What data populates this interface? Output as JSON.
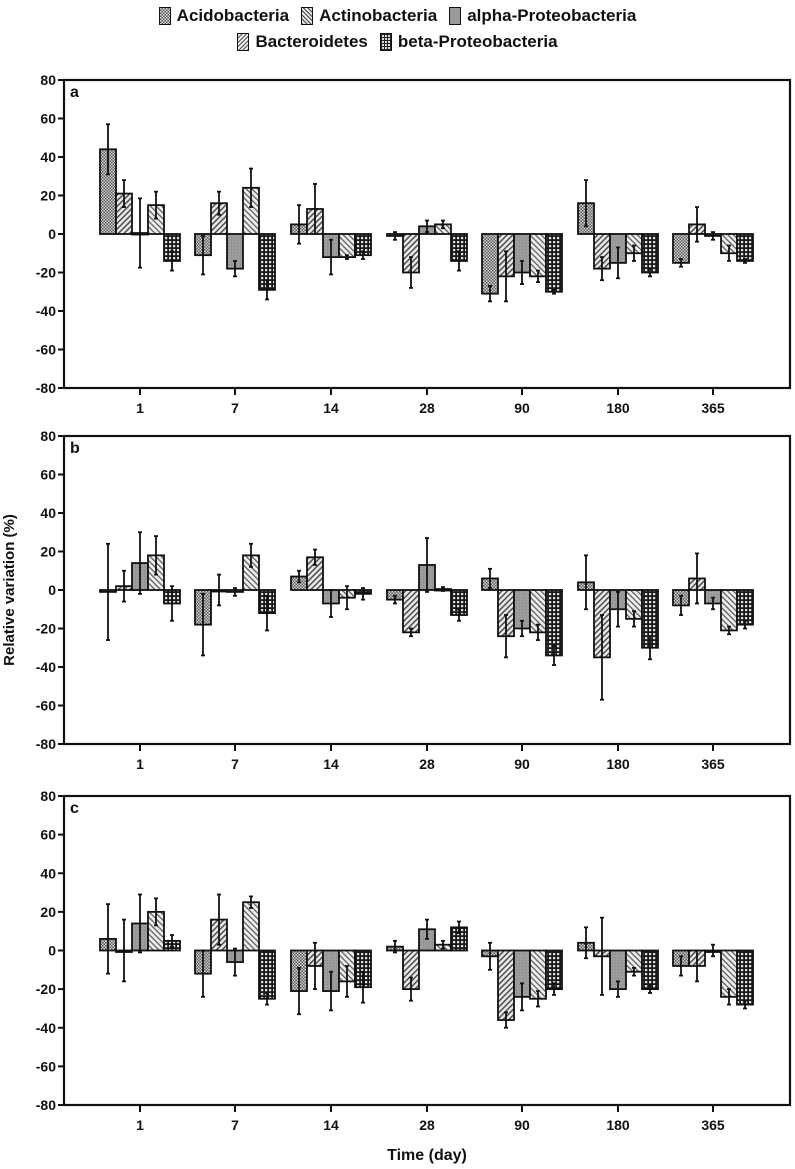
{
  "chart_data": {
    "type": "bar",
    "title": "",
    "xlabel": "Time (day)",
    "ylabel": "Relative variation (%)",
    "ylim": [
      -80,
      80
    ],
    "yticks": [
      80,
      60,
      40,
      20,
      0,
      -20,
      -40,
      -60,
      -80
    ],
    "categories": [
      "1",
      "7",
      "14",
      "28",
      "90",
      "180",
      "365"
    ],
    "legend": [
      "Acidobacteria",
      "Actinobacteria",
      "alpha-Proteobacteria",
      "Bacteroidetes",
      "beta-Proteobacteria"
    ],
    "legend_position": "top",
    "grid": false,
    "panels": [
      {
        "label": "a",
        "series": [
          {
            "name": "Acidobacteria",
            "values": [
              44,
              -11,
              5,
              -1,
              -31,
              16,
              -15
            ],
            "errors": [
              13,
              10,
              10,
              2,
              4,
              12,
              2
            ]
          },
          {
            "name": "Actinobacteria",
            "values": [
              21,
              16,
              13,
              -20,
              -22,
              -18,
              5
            ],
            "errors": [
              7,
              6,
              13,
              8,
              13,
              6,
              9
            ]
          },
          {
            "name": "alpha-Proteobacteria",
            "values": [
              0.5,
              -18,
              -12,
              4,
              -20,
              -15,
              -1
            ],
            "errors": [
              18,
              4,
              9,
              3,
              6,
              8,
              2
            ]
          },
          {
            "name": "Bacteroidetes",
            "values": [
              15,
              24,
              -12,
              5,
              -22,
              -10,
              -10
            ],
            "errors": [
              7,
              10,
              1,
              2,
              3,
              4,
              4
            ]
          },
          {
            "name": "beta-Proteobacteria",
            "values": [
              -14,
              -29,
              -11,
              -14,
              -30,
              -20,
              -14
            ],
            "errors": [
              5,
              5,
              2,
              5,
              1,
              2,
              1
            ]
          }
        ]
      },
      {
        "label": "b",
        "series": [
          {
            "name": "Acidobacteria",
            "values": [
              -1,
              -18,
              7,
              -5,
              6,
              4,
              -8
            ],
            "errors": [
              25,
              16,
              3,
              2,
              5,
              14,
              5
            ]
          },
          {
            "name": "Actinobacteria",
            "values": [
              2,
              0,
              17,
              -22,
              -24,
              -35,
              6
            ],
            "errors": [
              8,
              8,
              4,
              2,
              11,
              22,
              13
            ]
          },
          {
            "name": "alpha-Proteobacteria",
            "values": [
              14,
              -1,
              -7,
              13,
              -20,
              -10,
              -7
            ],
            "errors": [
              16,
              2,
              7,
              14,
              4,
              9,
              3
            ]
          },
          {
            "name": "Bacteroidetes",
            "values": [
              18,
              18,
              -4,
              0.5,
              -22,
              -15,
              -21
            ],
            "errors": [
              10,
              6,
              6,
              1,
              4,
              4,
              2
            ]
          },
          {
            "name": "beta-Proteobacteria",
            "values": [
              -7,
              -12,
              -2,
              -13,
              -34,
              -30,
              -18
            ],
            "errors": [
              9,
              9,
              3,
              3,
              5,
              6,
              2
            ]
          }
        ]
      },
      {
        "label": "c",
        "series": [
          {
            "name": "Acidobacteria",
            "values": [
              6,
              -12,
              -21,
              2,
              -3,
              4,
              -8
            ],
            "errors": [
              18,
              12,
              12,
              3,
              7,
              8,
              5
            ]
          },
          {
            "name": "Actinobacteria",
            "values": [
              0,
              16,
              -8,
              -20,
              -36,
              -3,
              -8
            ],
            "errors": [
              16,
              13,
              12,
              6,
              4,
              20,
              8
            ]
          },
          {
            "name": "alpha-Proteobacteria",
            "values": [
              14,
              -6,
              -21,
              11,
              -24,
              -20,
              0
            ],
            "errors": [
              15,
              7,
              10,
              5,
              7,
              4,
              3
            ]
          },
          {
            "name": "Bacteroidetes",
            "values": [
              20,
              25,
              -16,
              3,
              -25,
              -11,
              -24
            ],
            "errors": [
              7,
              3,
              8,
              2,
              4,
              2,
              4
            ]
          },
          {
            "name": "beta-Proteobacteria",
            "values": [
              5,
              -25,
              -19,
              12,
              -20,
              -20,
              -28
            ],
            "errors": [
              3,
              3,
              8,
              3,
              3,
              2,
              2
            ]
          }
        ]
      }
    ]
  },
  "legend": {
    "row1": [
      "Acidobacteria",
      "Actinobacteria",
      "alpha-Proteobacteria"
    ],
    "row2": [
      "Bacteroidetes",
      "beta-Proteobacteria"
    ]
  },
  "axes": {
    "xlabel": "Time (day)",
    "ylabel": "Relative variation (%)"
  }
}
